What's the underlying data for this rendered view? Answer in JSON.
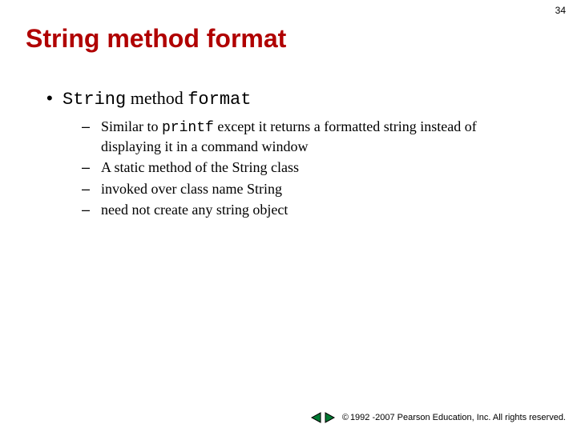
{
  "page_number": "34",
  "title": "String method format",
  "bullet": {
    "pre_mono": "String",
    "mid": " method ",
    "post_mono": "format"
  },
  "sub_bullets": [
    {
      "parts": [
        {
          "t": "Similar to ",
          "mono": false
        },
        {
          "t": "printf",
          "mono": true
        },
        {
          "t": " except it returns a formatted string instead of displaying it in a command window",
          "mono": false
        }
      ]
    },
    {
      "parts": [
        {
          "t": "A static method of the String class",
          "mono": false
        }
      ]
    },
    {
      "parts": [
        {
          "t": "invoked over class name String",
          "mono": false
        }
      ]
    },
    {
      "parts": [
        {
          "t": "need not create any string object",
          "mono": false
        }
      ]
    }
  ],
  "nav": {
    "prev_fill": "#007a33",
    "prev_stroke": "#000000",
    "next_fill": "#007a33",
    "next_stroke": "#000000"
  },
  "copyright": "1992 -2007 Pearson Education, Inc. All rights reserved."
}
